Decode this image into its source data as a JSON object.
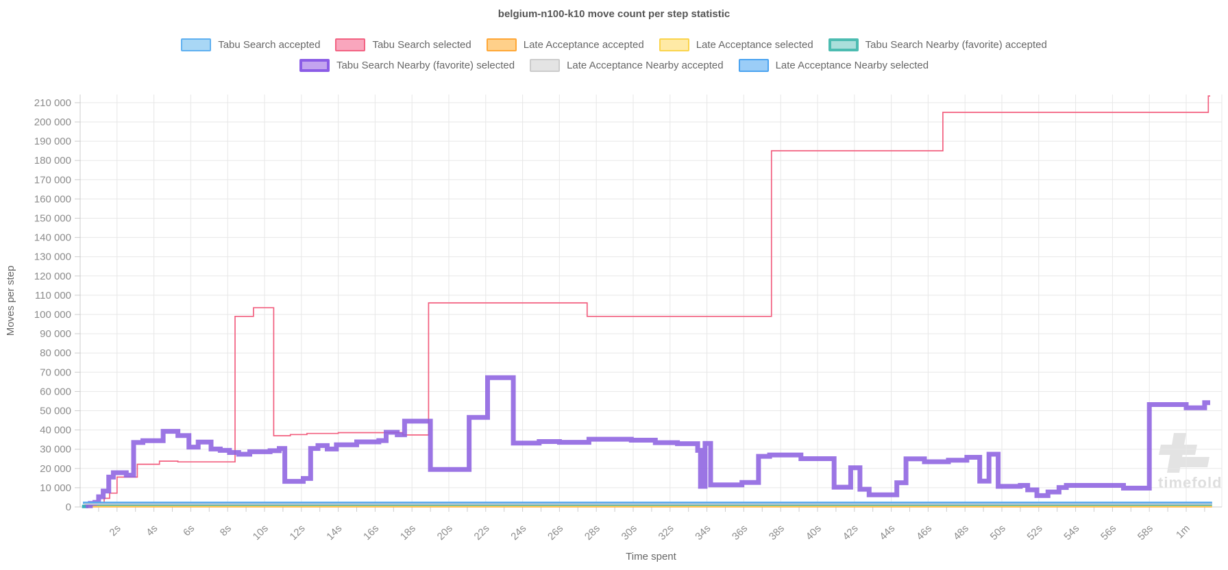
{
  "title": "belgium-n100-k10 move count per step statistic",
  "watermark": "timefold",
  "legend_rows": [
    [
      {
        "label": "Tabu Search accepted",
        "fill": "#a9d7f5",
        "border": "#5fb0f0",
        "thick": false
      },
      {
        "label": "Tabu Search selected",
        "fill": "#f9a6bd",
        "border": "#f26282",
        "thick": false
      },
      {
        "label": "Late Acceptance accepted",
        "fill": "#ffd08a",
        "border": "#ffa736",
        "thick": false
      },
      {
        "label": "Late Acceptance selected",
        "fill": "#ffeaa6",
        "border": "#fbd44c",
        "thick": false
      },
      {
        "label": "Tabu Search Nearby (favorite) accepted",
        "fill": "#aadfdb",
        "border": "#4cbcb1",
        "thick": true
      }
    ],
    [
      {
        "label": "Tabu Search Nearby (favorite) selected",
        "fill": "#c3a4ef",
        "border": "#8b5ce6",
        "thick": true
      },
      {
        "label": "Late Acceptance Nearby accepted",
        "fill": "#e4e4e4",
        "border": "#cccccc",
        "thick": false
      },
      {
        "label": "Late Acceptance Nearby selected",
        "fill": "#9bcdf7",
        "border": "#4aa3f0",
        "thick": false
      }
    ]
  ],
  "chart_data": {
    "type": "line",
    "subtype": "step-after",
    "title": "belgium-n100-k10 move count per step statistic",
    "xlabel": "Time spent",
    "ylabel": "Moves per step",
    "grid": true,
    "legend_position": "top",
    "xlim_seconds": [
      0,
      61.6
    ],
    "ylim": [
      0,
      215000
    ],
    "y_ticks": [
      {
        "value": 0,
        "label": "0"
      },
      {
        "value": 10000,
        "label": "10 000"
      },
      {
        "value": 20000,
        "label": "20 000"
      },
      {
        "value": 30000,
        "label": "30 000"
      },
      {
        "value": 40000,
        "label": "40 000"
      },
      {
        "value": 50000,
        "label": "50 000"
      },
      {
        "value": 60000,
        "label": "60 000"
      },
      {
        "value": 70000,
        "label": "70 000"
      },
      {
        "value": 80000,
        "label": "80 000"
      },
      {
        "value": 90000,
        "label": "90 000"
      },
      {
        "value": 100000,
        "label": "100 000"
      },
      {
        "value": 110000,
        "label": "110 000"
      },
      {
        "value": 120000,
        "label": "120 000"
      },
      {
        "value": 130000,
        "label": "130 000"
      },
      {
        "value": 140000,
        "label": "140 000"
      },
      {
        "value": 150000,
        "label": "150 000"
      },
      {
        "value": 160000,
        "label": "160 000"
      },
      {
        "value": 170000,
        "label": "170 000"
      },
      {
        "value": 180000,
        "label": "180 000"
      },
      {
        "value": 190000,
        "label": "190 000"
      },
      {
        "value": 200000,
        "label": "200 000"
      },
      {
        "value": 210000,
        "label": "210 000"
      }
    ],
    "x_ticks": [
      {
        "t": 2,
        "label": "2s"
      },
      {
        "t": 4,
        "label": "4s"
      },
      {
        "t": 6,
        "label": "6s"
      },
      {
        "t": 8,
        "label": "8s"
      },
      {
        "t": 10,
        "label": "10s"
      },
      {
        "t": 12,
        "label": "12s"
      },
      {
        "t": 14,
        "label": "14s"
      },
      {
        "t": 16,
        "label": "16s"
      },
      {
        "t": 18,
        "label": "18s"
      },
      {
        "t": 20,
        "label": "20s"
      },
      {
        "t": 22,
        "label": "22s"
      },
      {
        "t": 24,
        "label": "24s"
      },
      {
        "t": 26,
        "label": "26s"
      },
      {
        "t": 28,
        "label": "28s"
      },
      {
        "t": 30,
        "label": "30s"
      },
      {
        "t": 32,
        "label": "32s"
      },
      {
        "t": 34,
        "label": "34s"
      },
      {
        "t": 36,
        "label": "36s"
      },
      {
        "t": 38,
        "label": "38s"
      },
      {
        "t": 40,
        "label": "40s"
      },
      {
        "t": 42,
        "label": "42s"
      },
      {
        "t": 44,
        "label": "44s"
      },
      {
        "t": 46,
        "label": "46s"
      },
      {
        "t": 48,
        "label": "48s"
      },
      {
        "t": 50,
        "label": "50s"
      },
      {
        "t": 52,
        "label": "52s"
      },
      {
        "t": 54,
        "label": "54s"
      },
      {
        "t": 56,
        "label": "56s"
      },
      {
        "t": 58,
        "label": "58s"
      },
      {
        "t": 60,
        "label": "1m"
      }
    ],
    "series": [
      {
        "name": "Tabu Search accepted",
        "color": "#7cc0f0",
        "width": 3,
        "opacity": 1,
        "points": [
          [
            0.15,
            2000
          ]
        ],
        "end_t": 61.4
      },
      {
        "name": "Tabu Search selected",
        "color": "#f25f7f",
        "width": 1.7,
        "opacity": 1,
        "points": [
          [
            0.7,
            800
          ],
          [
            0.9,
            1600
          ],
          [
            1.3,
            4500
          ],
          [
            1.6,
            7200
          ],
          [
            2.0,
            15500
          ],
          [
            3.1,
            22200
          ],
          [
            4.3,
            23800
          ],
          [
            5.3,
            23400
          ],
          [
            8.4,
            99000
          ],
          [
            9.4,
            103500
          ],
          [
            10.5,
            37000
          ],
          [
            11.4,
            37600
          ],
          [
            12.3,
            38200
          ],
          [
            14.0,
            38600
          ],
          [
            17.5,
            37400
          ],
          [
            18.9,
            106000
          ],
          [
            27.5,
            99000
          ],
          [
            37.5,
            185000
          ],
          [
            46.8,
            205000
          ],
          [
            61.2,
            213500
          ]
        ],
        "end_t": 61.3
      },
      {
        "name": "Late Acceptance accepted",
        "color": "#ffb04d",
        "width": 2.6,
        "opacity": 1,
        "points": [
          [
            0.3,
            200
          ]
        ],
        "end_t": 61.4
      },
      {
        "name": "Late Acceptance selected",
        "color": "#ffd54f",
        "width": 2,
        "opacity": 1,
        "points": [
          [
            0.3,
            500
          ]
        ],
        "end_t": 61.4
      },
      {
        "name": "Tabu Search Nearby (favorite) accepted",
        "color": "#38afb9",
        "width": 5,
        "opacity": 1,
        "points": [
          [
            0.1,
            300
          ],
          [
            0.35,
            1500
          ]
        ],
        "end_t": 61.4
      },
      {
        "name": "Tabu Search Nearby (favorite) selected",
        "color": "#8d62e0",
        "width": 7,
        "opacity": 0.88,
        "points": [
          [
            0.3,
            600
          ],
          [
            0.55,
            1900
          ],
          [
            0.8,
            2400
          ],
          [
            1.0,
            5300
          ],
          [
            1.25,
            8300
          ],
          [
            1.55,
            15500
          ],
          [
            1.8,
            17800
          ],
          [
            2.5,
            16500
          ],
          [
            2.9,
            33500
          ],
          [
            3.4,
            34400
          ],
          [
            4.5,
            39300
          ],
          [
            5.3,
            37100
          ],
          [
            5.9,
            31100
          ],
          [
            6.4,
            33700
          ],
          [
            7.1,
            30100
          ],
          [
            7.6,
            29400
          ],
          [
            8.1,
            28300
          ],
          [
            8.6,
            27400
          ],
          [
            9.2,
            28700
          ],
          [
            10.3,
            29200
          ],
          [
            10.8,
            30400
          ],
          [
            11.1,
            13300
          ],
          [
            12.1,
            14800
          ],
          [
            12.5,
            30400
          ],
          [
            12.9,
            31900
          ],
          [
            13.4,
            30100
          ],
          [
            13.9,
            32300
          ],
          [
            15.0,
            33800
          ],
          [
            16.2,
            34500
          ],
          [
            16.6,
            38800
          ],
          [
            17.2,
            37500
          ],
          [
            17.6,
            44600
          ],
          [
            19.0,
            19500
          ],
          [
            21.1,
            46500
          ],
          [
            22.1,
            67200
          ],
          [
            23.5,
            33200
          ],
          [
            24.9,
            34000
          ],
          [
            26.0,
            33600
          ],
          [
            27.6,
            35200
          ],
          [
            29.9,
            34700
          ],
          [
            31.2,
            33400
          ],
          [
            32.4,
            32900
          ],
          [
            33.5,
            29400
          ],
          [
            33.65,
            10700
          ],
          [
            33.9,
            33000
          ],
          [
            34.2,
            11500
          ],
          [
            35.9,
            12700
          ],
          [
            36.8,
            26300
          ],
          [
            37.4,
            27000
          ],
          [
            39.1,
            25100
          ],
          [
            40.9,
            10300
          ],
          [
            41.8,
            20400
          ],
          [
            42.3,
            9200
          ],
          [
            42.8,
            6300
          ],
          [
            44.3,
            12600
          ],
          [
            44.8,
            25000
          ],
          [
            45.8,
            23500
          ],
          [
            47.1,
            24300
          ],
          [
            48.1,
            25800
          ],
          [
            48.8,
            13400
          ],
          [
            49.3,
            27400
          ],
          [
            49.8,
            10700
          ],
          [
            51.0,
            11200
          ],
          [
            51.4,
            8900
          ],
          [
            51.9,
            5900
          ],
          [
            52.5,
            7800
          ],
          [
            53.1,
            10100
          ],
          [
            53.5,
            11200
          ],
          [
            56.6,
            9800
          ],
          [
            58.0,
            53200
          ],
          [
            60.0,
            51500
          ],
          [
            61.0,
            54200
          ]
        ],
        "end_t": 61.3
      },
      {
        "name": "Late Acceptance Nearby accepted",
        "color": "#cfcfcf",
        "width": 2.5,
        "opacity": 1,
        "points": [
          [
            0.2,
            1600
          ]
        ],
        "end_t": 61.4
      },
      {
        "name": "Late Acceptance Nearby selected",
        "color": "#53a7ef",
        "width": 2.5,
        "opacity": 1,
        "points": [
          [
            0.15,
            2300
          ]
        ],
        "end_t": 61.4
      }
    ]
  },
  "colors": {
    "title_text": "#555555",
    "legend_text": "#666666",
    "tick_text": "#8c8c8c",
    "axis_label_text": "#666666",
    "gridline": "#e7e7e7",
    "axis_line": "#cccccc",
    "watermark": "#dedede"
  }
}
